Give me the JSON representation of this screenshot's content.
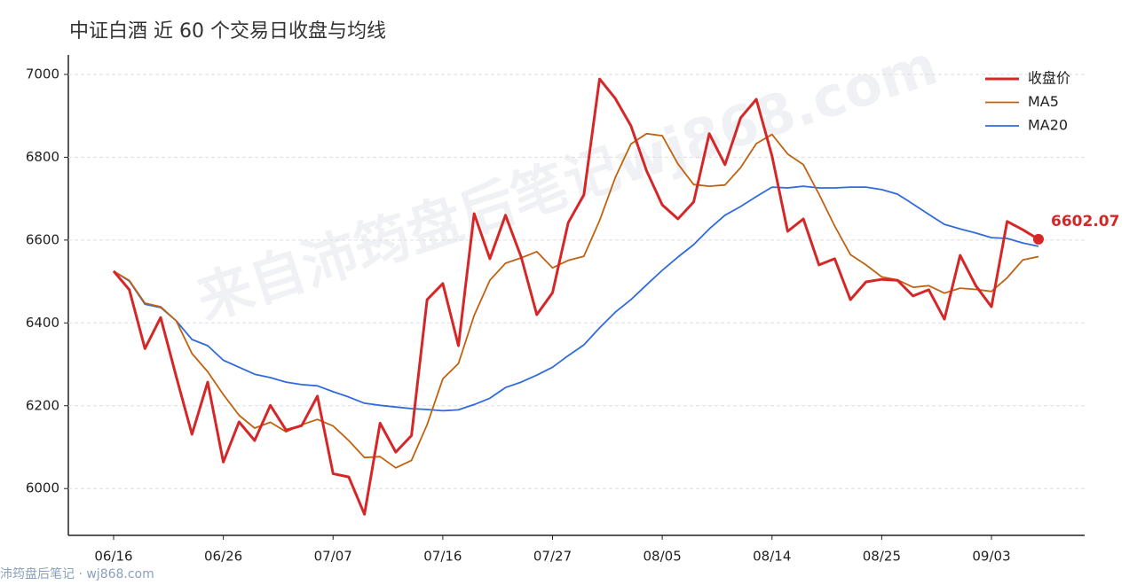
{
  "chart_data": {
    "type": "line",
    "title": "中证白酒 近 60 个交易日收盘与均线",
    "watermark": "来自沛筠盘后笔记wj868.com",
    "footer": "沛筠盘后笔记 · wj868.com",
    "categories": [
      "06/16",
      null,
      null,
      null,
      null,
      null,
      null,
      "06/26",
      null,
      null,
      null,
      null,
      null,
      null,
      "07/07",
      null,
      null,
      null,
      null,
      null,
      null,
      "07/16",
      null,
      null,
      null,
      null,
      null,
      null,
      "07/27",
      null,
      null,
      null,
      null,
      null,
      null,
      "08/05",
      null,
      null,
      null,
      null,
      null,
      null,
      "08/14",
      null,
      null,
      null,
      null,
      null,
      null,
      "08/25",
      null,
      null,
      null,
      null,
      null,
      null,
      "09/03",
      null,
      null,
      null
    ],
    "ylim": [
      5887,
      7047
    ],
    "yticks": [
      6000,
      6200,
      6400,
      6600,
      6800,
      7000
    ],
    "grid": true,
    "legend": "upper right",
    "series": [
      {
        "name": "收盘价",
        "color": "#d62728",
        "values": [
          6525,
          6480,
          6338,
          6413,
          6270,
          6131,
          6257,
          6064,
          6161,
          6116,
          6201,
          6141,
          6152,
          6223,
          6036,
          6028,
          5938,
          6158,
          6088,
          6128,
          6456,
          6495,
          6345,
          6664,
          6555,
          6660,
          6559,
          6420,
          6473,
          6642,
          6709,
          6989,
          6942,
          6876,
          6767,
          6685,
          6651,
          6692,
          6857,
          6782,
          6895,
          6940,
          6803,
          6621,
          6651,
          6540,
          6555,
          6456,
          6499,
          6505,
          6503,
          6465,
          6480,
          6409,
          6563,
          6490,
          6439,
          6645,
          6625,
          6602.07
        ],
        "value_labels": [
          null,
          null,
          null,
          null,
          null,
          null,
          null,
          null,
          null,
          null,
          null,
          null,
          null,
          null,
          null,
          null,
          null,
          null,
          null,
          null,
          null,
          null,
          null,
          null,
          null,
          null,
          null,
          null,
          null,
          null,
          null,
          null,
          null,
          null,
          null,
          null,
          null,
          null,
          null,
          null,
          null,
          null,
          null,
          null,
          null,
          null,
          null,
          null,
          null,
          null,
          null,
          null,
          null,
          null,
          null,
          null,
          null,
          null,
          null,
          "6602.07"
        ]
      },
      {
        "name": "MA5",
        "color": "#c0620f",
        "values": [
          6525,
          6502.5,
          6447.7,
          6439,
          6405,
          6326,
          6282,
          6227,
          6177,
          6146,
          6160,
          6137,
          6154,
          6167,
          6151,
          6116,
          6075,
          6077,
          6050,
          6068,
          6154,
          6265,
          6302,
          6418,
          6503,
          6544,
          6557,
          6572,
          6533,
          6551,
          6561,
          6647,
          6751,
          6832,
          6857,
          6852,
          6784,
          6734,
          6730,
          6733,
          6775,
          6833,
          6855,
          6808,
          6782,
          6711,
          6634,
          6565,
          6540,
          6511,
          6504,
          6486,
          6490,
          6472,
          6484,
          6481,
          6476,
          6509,
          6552,
          6560
        ]
      },
      {
        "name": "MA20",
        "color": "#2f6bdc",
        "values": [
          6525,
          6501,
          6445,
          6437,
          6405,
          6360,
          6345,
          6310,
          6293,
          6276,
          6268,
          6257,
          6251,
          6248,
          6234,
          6221,
          6206,
          6201,
          6197,
          6193,
          6191,
          6188,
          6190,
          6203,
          6218,
          6244,
          6257,
          6274,
          6293,
          6321,
          6347,
          6388,
          6426,
          6456,
          6492,
          6527,
          6559,
          6589,
          6627,
          6660,
          6681,
          6705,
          6728,
          6726,
          6730,
          6726,
          6726,
          6728,
          6728,
          6722,
          6711,
          6687,
          6662,
          6638,
          6627,
          6617,
          6606,
          6604,
          6593,
          6585
        ]
      }
    ]
  }
}
